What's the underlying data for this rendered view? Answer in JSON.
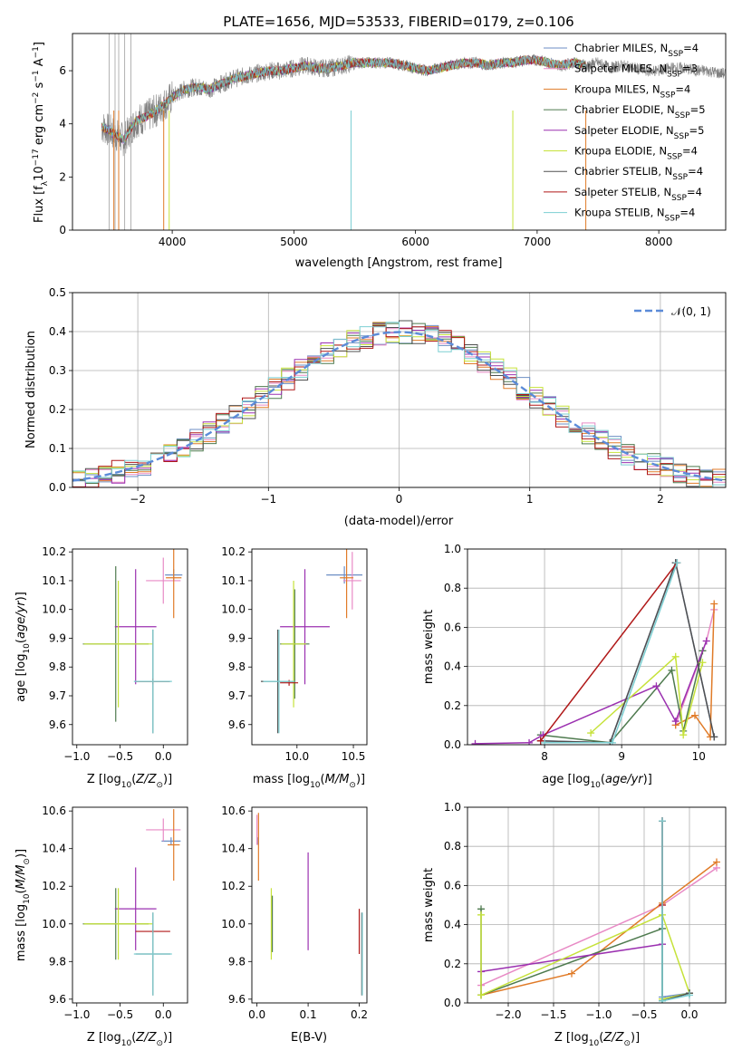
{
  "title": "PLATE=1656, MJD=53533, FIBERID=0179, z=0.106",
  "series": [
    {
      "name": "Chabrier MILES, N$_{SSP}$=4",
      "label_main": "Chabrier MILES, N",
      "label_sub": "SSP",
      "label_tail": "=4",
      "color": "#6c8ec4"
    },
    {
      "name": "Salpeter MILES, N$_{SSP}$=3",
      "label_main": "Salpeter MILES, N",
      "label_sub": "SSP",
      "label_tail": "=3",
      "color": "#e88ac5"
    },
    {
      "name": "Kroupa MILES, N$_{SSP}$=4",
      "label_main": "Kroupa MILES, N",
      "label_sub": "SSP",
      "label_tail": "=4",
      "color": "#e07b28"
    },
    {
      "name": "Chabrier ELODIE, N$_{SSP}$=5",
      "label_main": "Chabrier ELODIE, N",
      "label_sub": "SSP",
      "label_tail": "=5",
      "color": "#4e7a4e"
    },
    {
      "name": "Salpeter ELODIE, N$_{SSP}$=5",
      "label_main": "Salpeter ELODIE, N",
      "label_sub": "SSP",
      "label_tail": "=5",
      "color": "#9b30b0"
    },
    {
      "name": "Kroupa ELODIE, N$_{SSP}$=4",
      "label_main": "Kroupa ELODIE, N",
      "label_sub": "SSP",
      "label_tail": "=4",
      "color": "#c6e23a"
    },
    {
      "name": "Chabrier STELIB, N$_{SSP}$=4",
      "label_main": "Chabrier STELIB, N",
      "label_sub": "SSP",
      "label_tail": "=4",
      "color": "#505050"
    },
    {
      "name": "Salpeter STELIB, N$_{SSP}$=4",
      "label_main": "Salpeter STELIB, N",
      "label_sub": "SSP",
      "label_tail": "=4",
      "color": "#b01818"
    },
    {
      "name": "Kroupa STELIB, N$_{SSP}$=4",
      "label_main": "Kroupa STELIB, N",
      "label_sub": "SSP",
      "label_tail": "=4",
      "color": "#7ccfd2"
    }
  ],
  "chart_data": [
    {
      "id": "spectrum",
      "type": "line",
      "xlabel": "wavelength [Angstrom, rest frame]",
      "ylabel": "Flux [f$_\\lambda$10$^{-17}$ erg cm$^{-2}$ s$^{-1}$ A$^{-1}$]",
      "ylabel_parts": [
        "Flux [f",
        "λ",
        "10",
        "−17",
        " erg cm",
        "−2",
        " s",
        "−1",
        " A",
        "−1",
        "]"
      ],
      "xlim": [
        3180,
        8550
      ],
      "ylim": [
        0,
        7.4
      ],
      "xticks": [
        4000,
        5000,
        6000,
        7000,
        8000
      ],
      "yticks": [
        0,
        2,
        4,
        6
      ],
      "data_color": "#808080",
      "data_points": [
        [
          3420,
          3.9
        ],
        [
          3500,
          3.7
        ],
        [
          3600,
          3.4
        ],
        [
          3700,
          4.1
        ],
        [
          3800,
          4.3
        ],
        [
          3900,
          4.6
        ],
        [
          4000,
          5.0
        ],
        [
          4100,
          5.3
        ],
        [
          4200,
          5.4
        ],
        [
          4300,
          5.3
        ],
        [
          4400,
          5.5
        ],
        [
          4500,
          5.7
        ],
        [
          4600,
          5.8
        ],
        [
          4700,
          5.9
        ],
        [
          4800,
          6.0
        ],
        [
          4900,
          6.0
        ],
        [
          5000,
          6.1
        ],
        [
          5100,
          6.2
        ],
        [
          5200,
          6.1
        ],
        [
          5300,
          6.1
        ],
        [
          5400,
          6.2
        ],
        [
          5500,
          6.3
        ],
        [
          5600,
          6.3
        ],
        [
          5700,
          6.3
        ],
        [
          5800,
          6.3
        ],
        [
          5900,
          6.2
        ],
        [
          6000,
          6.1
        ],
        [
          6100,
          6.0
        ],
        [
          6200,
          6.1
        ],
        [
          6300,
          6.2
        ],
        [
          6400,
          6.3
        ],
        [
          6500,
          6.3
        ],
        [
          6600,
          6.2
        ],
        [
          6700,
          6.3
        ],
        [
          6800,
          6.3
        ],
        [
          6900,
          6.4
        ],
        [
          7000,
          6.4
        ],
        [
          7100,
          6.3
        ],
        [
          7200,
          6.2
        ],
        [
          7300,
          6.3
        ],
        [
          7400,
          6.2
        ],
        [
          7500,
          6.3
        ],
        [
          7600,
          6.1
        ],
        [
          7700,
          6.2
        ],
        [
          7800,
          6.1
        ],
        [
          7900,
          6.0
        ],
        [
          8000,
          6.0
        ],
        [
          8100,
          6.1
        ],
        [
          8200,
          6.1
        ],
        [
          8300,
          6.0
        ],
        [
          8400,
          6.0
        ],
        [
          8500,
          5.9
        ]
      ],
      "model_end": 7400,
      "gaps": [
        [
          3520,
          0,
          "#e07b28"
        ],
        [
          3560,
          0,
          "#e07b28"
        ],
        [
          3930,
          0,
          "#e07b28"
        ],
        [
          3975,
          0,
          "#c6e23a"
        ],
        [
          5470,
          0,
          "#7ccfd2"
        ],
        [
          6800,
          0,
          "#c6e23a"
        ],
        [
          7400,
          0,
          "#e07b28"
        ]
      ]
    },
    {
      "id": "normed",
      "type": "histogram",
      "xlabel": "(data-model)/error",
      "ylabel": "Normed distribution",
      "xlim": [
        -2.5,
        2.5
      ],
      "ylim": [
        0,
        0.5
      ],
      "xticks": [
        -2,
        -1,
        0,
        1,
        2
      ],
      "yticks": [
        0,
        0.1,
        0.2,
        0.3,
        0.4,
        0.5
      ],
      "grid": true,
      "legend_label": "𝒩(0, 1)",
      "legend_position": "top-right",
      "gauss_color": "#5b8bd8",
      "bin_width": 0.1,
      "bin_start": -2.5
    },
    {
      "id": "age_vs_Z",
      "type": "errorbar",
      "xlabel_main": "Z [log",
      "xlabel_sub": "10",
      "xlabel_tail": "(Z/Z",
      "xlabel_sub2": "⊙",
      "xlabel_end": ")]",
      "ylabel_main": "age  [log",
      "ylabel_sub": "10",
      "ylabel_tail": "(age/yr)]",
      "xlim": [
        -1.05,
        0.28
      ],
      "ylim": [
        9.53,
        10.21
      ],
      "xticks": [
        -1.0,
        -0.5,
        0.0
      ],
      "yticks": [
        9.6,
        9.7,
        9.8,
        9.9,
        10.0,
        10.1,
        10.2
      ],
      "points": [
        {
          "s": 0,
          "x": 0.12,
          "y": 10.12,
          "xe": 0.1,
          "ye": 0.02
        },
        {
          "s": 1,
          "x": 0.0,
          "y": 10.1,
          "xe": 0.2,
          "ye": 0.08
        },
        {
          "s": 2,
          "x": 0.12,
          "y": 10.11,
          "xe": 0.09,
          "ye": 0.14
        },
        {
          "s": 3,
          "x": -0.55,
          "y": 9.88,
          "xe": 0.38,
          "ye": 0.27
        },
        {
          "s": 4,
          "x": -0.32,
          "y": 9.94,
          "xe": 0.24,
          "ye": 0.2
        },
        {
          "s": 5,
          "x": -0.52,
          "y": 9.88,
          "xe": 0.4,
          "ye": 0.22
        },
        {
          "s": 6,
          "x": -0.12,
          "y": 9.75,
          "xe": 0.2,
          "ye": 0.18
        },
        {
          "s": 7,
          "x": -0.12,
          "y": 9.75,
          "xe": 0.19,
          "ye": 0.01
        },
        {
          "s": 8,
          "x": -0.12,
          "y": 9.75,
          "xe": 0.22,
          "ye": 0.18
        }
      ]
    },
    {
      "id": "age_vs_mass",
      "type": "errorbar",
      "xlabel_main": "mass [log",
      "xlabel_sub": "10",
      "xlabel_tail": "(M/M",
      "xlabel_sub2": "⊙",
      "xlabel_end": ")]",
      "xlim": [
        9.6,
        10.62
      ],
      "ylim": [
        9.53,
        10.21
      ],
      "xticks": [
        10.0,
        10.5
      ],
      "yticks": [
        9.6,
        9.7,
        9.8,
        9.9,
        10.0,
        10.1,
        10.2
      ],
      "points": [
        {
          "s": 0,
          "x": 10.42,
          "y": 10.12,
          "xe": 0.16,
          "ye": 0.03
        },
        {
          "s": 1,
          "x": 10.49,
          "y": 10.1,
          "xe": 0.08,
          "ye": 0.1
        },
        {
          "s": 2,
          "x": 10.44,
          "y": 10.11,
          "xe": 0.06,
          "ye": 0.14
        },
        {
          "s": 3,
          "x": 9.98,
          "y": 9.88,
          "xe": 0.13,
          "ye": 0.19
        },
        {
          "s": 4,
          "x": 10.07,
          "y": 9.94,
          "xe": 0.22,
          "ye": 0.2
        },
        {
          "s": 5,
          "x": 9.97,
          "y": 9.88,
          "xe": 0.11,
          "ye": 0.22
        },
        {
          "s": 6,
          "x": 9.83,
          "y": 9.75,
          "xe": 0.15,
          "ye": 0.18
        },
        {
          "s": 7,
          "x": 9.93,
          "y": 9.745,
          "xe": 0.08,
          "ye": 0.01
        },
        {
          "s": 8,
          "x": 9.84,
          "y": 9.75,
          "xe": 0.14,
          "ye": 0.18
        }
      ]
    },
    {
      "id": "massweight_vs_age",
      "type": "line",
      "xlabel_main": "age  [log",
      "xlabel_sub": "10",
      "xlabel_tail": "(age/yr)]",
      "ylabel": "mass weight",
      "xlim": [
        7.0,
        10.35
      ],
      "ylim": [
        0,
        1.0
      ],
      "xticks": [
        8,
        9,
        10
      ],
      "yticks": [
        0.0,
        0.2,
        0.4,
        0.6,
        0.8,
        1.0
      ],
      "grid": true,
      "lines": [
        {
          "s": 0,
          "pts": [
            [
              7.95,
              0.02
            ],
            [
              8.85,
              0.01
            ],
            [
              9.7,
              0.93
            ],
            [
              10.2,
              0.04
            ]
          ]
        },
        {
          "s": 1,
          "pts": [
            [
              9.7,
              0.1
            ],
            [
              10.1,
              0.53
            ],
            [
              10.2,
              0.69
            ]
          ]
        },
        {
          "s": 2,
          "pts": [
            [
              9.7,
              0.1
            ],
            [
              9.95,
              0.15
            ],
            [
              10.15,
              0.04
            ],
            [
              10.2,
              0.72
            ]
          ]
        },
        {
          "s": 3,
          "pts": [
            [
              7.95,
              0.05
            ],
            [
              8.85,
              0.01
            ],
            [
              9.65,
              0.38
            ],
            [
              9.8,
              0.07
            ],
            [
              10.05,
              0.48
            ]
          ]
        },
        {
          "s": 4,
          "pts": [
            [
              7.1,
              0.005
            ],
            [
              7.8,
              0.01
            ],
            [
              7.98,
              0.05
            ],
            [
              9.45,
              0.3
            ],
            [
              9.7,
              0.12
            ],
            [
              10.1,
              0.53
            ]
          ]
        },
        {
          "s": 5,
          "pts": [
            [
              8.6,
              0.06
            ],
            [
              9.7,
              0.45
            ],
            [
              9.8,
              0.05
            ],
            [
              10.05,
              0.42
            ]
          ]
        },
        {
          "s": 6,
          "pts": [
            [
              7.95,
              0.02
            ],
            [
              8.85,
              0.01
            ],
            [
              9.7,
              0.93
            ],
            [
              10.2,
              0.04
            ]
          ]
        },
        {
          "s": 7,
          "pts": [
            [
              7.95,
              0.02
            ],
            [
              9.72,
              0.93
            ]
          ]
        },
        {
          "s": 8,
          "pts": [
            [
              8.0,
              0.01
            ],
            [
              8.88,
              0.01
            ],
            [
              9.72,
              0.93
            ]
          ]
        }
      ]
    },
    {
      "id": "mass_vs_Z",
      "type": "errorbar",
      "xlabel_main": "Z [log",
      "xlabel_sub": "10",
      "xlabel_tail": "(Z/Z",
      "xlabel_sub2": "⊙",
      "xlabel_end": ")]",
      "ylabel_main": "mass [log",
      "ylabel_sub": "10",
      "ylabel_tail": "(M/M",
      "ylabel_sub2": "⊙",
      "ylabel_end": ")]",
      "xlim": [
        -1.05,
        0.28
      ],
      "ylim": [
        9.58,
        10.62
      ],
      "xticks": [
        -1.0,
        -0.5,
        0.0
      ],
      "yticks": [
        9.6,
        9.8,
        10.0,
        10.2,
        10.4,
        10.6
      ],
      "points": [
        {
          "s": 0,
          "x": 0.09,
          "y": 10.44,
          "xe": 0.11,
          "ye": 0.02
        },
        {
          "s": 1,
          "x": 0.0,
          "y": 10.5,
          "xe": 0.2,
          "ye": 0.06
        },
        {
          "s": 2,
          "x": 0.12,
          "y": 10.42,
          "xe": 0.07,
          "ye": 0.19
        },
        {
          "s": 3,
          "x": -0.55,
          "y": 10.0,
          "xe": 0.38,
          "ye": 0.19
        },
        {
          "s": 4,
          "x": -0.32,
          "y": 10.08,
          "xe": 0.24,
          "ye": 0.22
        },
        {
          "s": 5,
          "x": -0.52,
          "y": 10.0,
          "xe": 0.4,
          "ye": 0.19
        },
        {
          "s": 6,
          "x": -0.12,
          "y": 9.84,
          "xe": 0.2,
          "ye": 0.22
        },
        {
          "s": 7,
          "x": -0.12,
          "y": 9.96,
          "xe": 0.2,
          "ye": 0.01
        },
        {
          "s": 8,
          "x": -0.12,
          "y": 9.84,
          "xe": 0.22,
          "ye": 0.22
        }
      ]
    },
    {
      "id": "mass_vs_ebv",
      "type": "errorbar",
      "xlabel": "E(B-V)",
      "xlim": [
        -0.01,
        0.215
      ],
      "ylim": [
        9.58,
        10.62
      ],
      "xticks": [
        0.0,
        0.1,
        0.2
      ],
      "yticks": [
        9.6,
        9.8,
        10.0,
        10.2,
        10.4,
        10.6
      ],
      "points": [
        {
          "s": 0,
          "x": 0.002,
          "y": 10.44,
          "xe": 0,
          "ye": 0.02
        },
        {
          "s": 1,
          "x": 0.0,
          "y": 10.5,
          "xe": 0,
          "ye": 0.08
        },
        {
          "s": 2,
          "x": 0.003,
          "y": 10.41,
          "xe": 0,
          "ye": 0.18
        },
        {
          "s": 3,
          "x": 0.03,
          "y": 10.0,
          "xe": 0,
          "ye": 0.15
        },
        {
          "s": 4,
          "x": 0.1,
          "y": 10.12,
          "xe": 0,
          "ye": 0.26
        },
        {
          "s": 5,
          "x": 0.028,
          "y": 10.0,
          "xe": 0,
          "ye": 0.19
        },
        {
          "s": 6,
          "x": 0.205,
          "y": 9.84,
          "xe": 0,
          "ye": 0.22
        },
        {
          "s": 7,
          "x": 0.2,
          "y": 9.96,
          "xe": 0,
          "ye": 0.12
        },
        {
          "s": 8,
          "x": 0.206,
          "y": 9.84,
          "xe": 0,
          "ye": 0.22
        }
      ]
    },
    {
      "id": "massweight_vs_Z",
      "type": "line",
      "xlabel_main": "Z [log",
      "xlabel_sub": "10",
      "xlabel_tail": "(Z/Z",
      "xlabel_sub2": "⊙",
      "xlabel_end": ")]",
      "ylabel": "mass weight",
      "xlim": [
        -2.45,
        0.4
      ],
      "ylim": [
        0,
        1.0
      ],
      "xticks": [
        -2.0,
        -1.5,
        -1.0,
        -0.5,
        0.0
      ],
      "yticks": [
        0.0,
        0.2,
        0.4,
        0.6,
        0.8,
        1.0
      ],
      "grid": true,
      "lines": [
        {
          "s": 0,
          "pts": [
            [
              -0.3,
              0.93
            ],
            [
              -0.3,
              0.01
            ],
            [
              0.0,
              0.05
            ],
            [
              -0.3,
              0.03
            ]
          ]
        },
        {
          "s": 1,
          "pts": [
            [
              -2.3,
              0.09
            ],
            [
              -0.3,
              0.5
            ],
            [
              0.3,
              0.69
            ]
          ]
        },
        {
          "s": 2,
          "pts": [
            [
              -2.3,
              0.04
            ],
            [
              -1.3,
              0.15
            ],
            [
              -0.3,
              0.51
            ],
            [
              0.3,
              0.72
            ]
          ]
        },
        {
          "s": 3,
          "pts": [
            [
              -2.3,
              0.48
            ],
            [
              -2.3,
              0.04
            ],
            [
              -0.3,
              0.38
            ],
            [
              -0.3,
              0.01
            ],
            [
              0.0,
              0.05
            ]
          ]
        },
        {
          "s": 4,
          "pts": [
            [
              -2.3,
              0.16
            ],
            [
              -0.3,
              0.3
            ]
          ]
        },
        {
          "s": 5,
          "pts": [
            [
              -2.3,
              0.45
            ],
            [
              -2.3,
              0.04
            ],
            [
              -0.3,
              0.45
            ],
            [
              0.0,
              0.05
            ],
            [
              -0.3,
              0.02
            ]
          ]
        },
        {
          "s": 6,
          "pts": [
            [
              -0.3,
              0.93
            ],
            [
              -0.3,
              0.01
            ],
            [
              0.0,
              0.05
            ]
          ]
        },
        {
          "s": 7,
          "pts": [
            [
              -0.3,
              0.93
            ],
            [
              -0.3,
              0.5
            ]
          ]
        },
        {
          "s": 8,
          "pts": [
            [
              -0.3,
              0.93
            ],
            [
              -0.3,
              0.01
            ],
            [
              0.0,
              0.04
            ]
          ]
        }
      ]
    }
  ]
}
